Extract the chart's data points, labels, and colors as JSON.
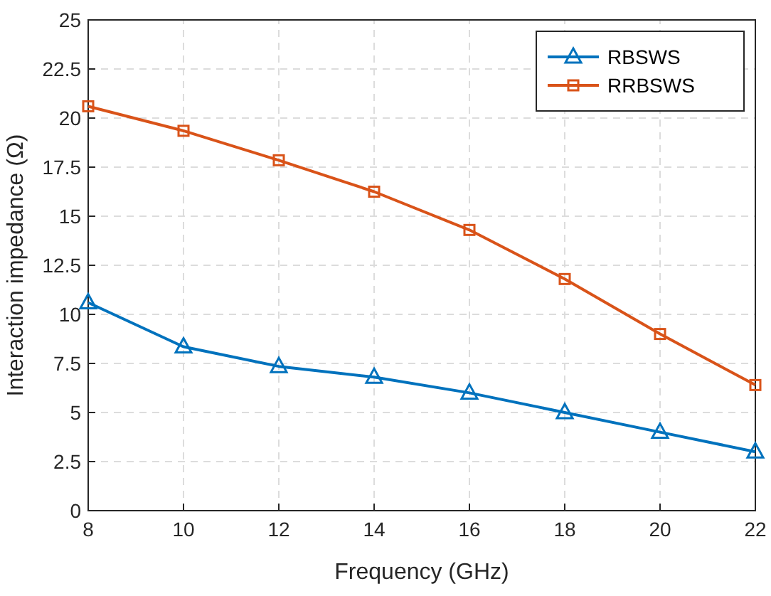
{
  "chart_data": {
    "type": "line",
    "xlabel": "Frequency (GHz)",
    "ylabel": "Interaction impedance (Ω)",
    "x": [
      8,
      10,
      12,
      14,
      16,
      18,
      20,
      22
    ],
    "series": [
      {
        "name": "RBSWS",
        "color": "#0072bd",
        "marker": "triangle",
        "values": [
          10.6,
          8.35,
          7.35,
          6.8,
          6.0,
          5.0,
          4.0,
          3.0
        ]
      },
      {
        "name": "RRBSWS",
        "color": "#d95319",
        "marker": "square",
        "values": [
          20.6,
          19.35,
          17.85,
          16.25,
          14.3,
          11.8,
          9.0,
          6.4
        ]
      }
    ],
    "xlim": [
      8,
      22
    ],
    "xticks": [
      8,
      10,
      12,
      14,
      16,
      18,
      20,
      22
    ],
    "ylim": [
      0,
      25
    ],
    "yticks": [
      0,
      2.5,
      5,
      7.5,
      10,
      12.5,
      15,
      17.5,
      20,
      22.5,
      25
    ],
    "grid": true,
    "legend": "top right"
  }
}
